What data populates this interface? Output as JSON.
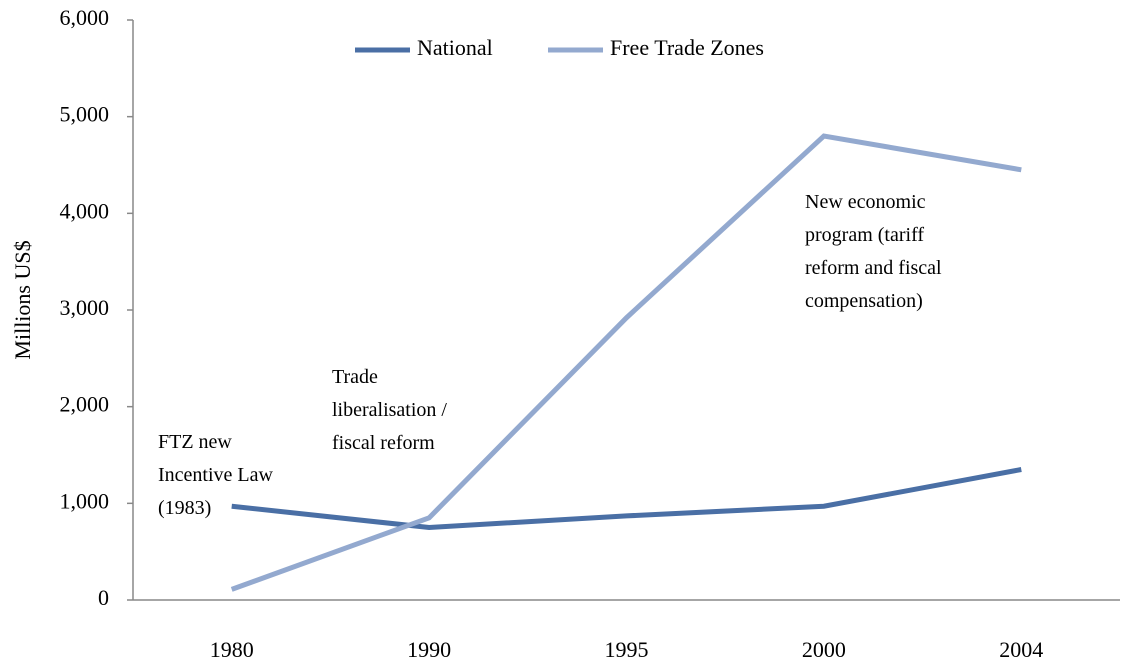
{
  "chart_data": {
    "type": "line",
    "y_label": "Millions US$",
    "categories": [
      "1980",
      "1990",
      "1995",
      "2000",
      "2004"
    ],
    "series": [
      {
        "name": "National",
        "color": "#4a6fa5",
        "values": [
          970,
          750,
          870,
          970,
          1350
        ]
      },
      {
        "name": "Free Trade Zones",
        "color": "#93a9cf",
        "values": [
          110,
          850,
          2920,
          4800,
          4450
        ]
      }
    ],
    "ylim": [
      0,
      6000
    ],
    "yticks": [
      0,
      {
        "value": 1000,
        "label": "1,000"
      },
      {
        "value": 2000,
        "label": "2,000"
      },
      {
        "value": 3000,
        "label": "3,000"
      },
      {
        "value": 4000,
        "label": "4,000"
      },
      {
        "value": 5000,
        "label": "5,000"
      },
      {
        "value": 6000,
        "label": "6,000"
      }
    ],
    "legend": "top",
    "annotations": [
      [
        "FTZ new",
        "Incentive Law",
        "(1983)"
      ],
      [
        "Trade",
        "liberalisation  /",
        "fiscal reform"
      ],
      [
        "New economic",
        "program (tariff",
        "reform and fiscal",
        "compensation)"
      ]
    ]
  }
}
